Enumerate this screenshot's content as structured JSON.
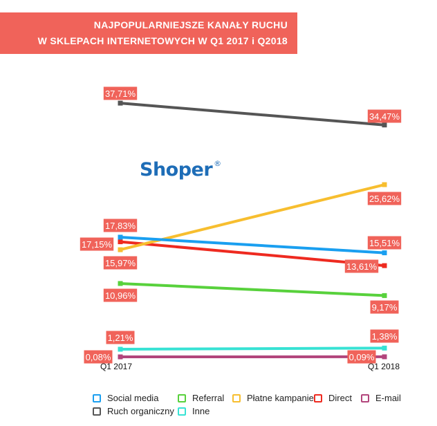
{
  "chart_data": {
    "type": "line",
    "title": "NAJPOPULARNIEJSZE KANAŁY RUCHU",
    "subtitle": "W SKLEPACH INTERNETOWYCH W Q1 2017 i Q2018",
    "categories": [
      "Q1 2017",
      "Q1 2018"
    ],
    "y_unit": "%",
    "series": [
      {
        "name": "Social media",
        "color": "#1a9ff0",
        "values": [
          17.83,
          15.51
        ],
        "labels": [
          "17,83%",
          "15,51%"
        ]
      },
      {
        "name": "Referral",
        "color": "#58d13c",
        "values": [
          10.96,
          9.17
        ],
        "labels": [
          "10,96%",
          "9,17%"
        ]
      },
      {
        "name": "Płatne kampanie",
        "color": "#f7be2f",
        "values": [
          15.97,
          25.62
        ],
        "labels": [
          "15,97%",
          "25,62%"
        ]
      },
      {
        "name": "Direct",
        "color": "#ee2a20",
        "values": [
          17.15,
          13.61
        ],
        "labels": [
          "17,15%",
          "13,61%"
        ]
      },
      {
        "name": "E-mail",
        "color": "#b2457c",
        "values": [
          0.08,
          0.09
        ],
        "labels": [
          "0,08%",
          "0,09%"
        ]
      },
      {
        "name": "Ruch organiczny",
        "color": "#555555",
        "values": [
          37.71,
          34.47
        ],
        "labels": [
          "37,71%",
          "34,47%"
        ]
      },
      {
        "name": "Inne",
        "color": "#37e2d4",
        "values": [
          1.21,
          1.38
        ],
        "labels": [
          "1,21%",
          "1,38%"
        ]
      }
    ],
    "label_bg": "#f0635a",
    "legend_position": "bottom",
    "grid": false
  },
  "brand": {
    "name": "Shoper",
    "mark": "®"
  }
}
